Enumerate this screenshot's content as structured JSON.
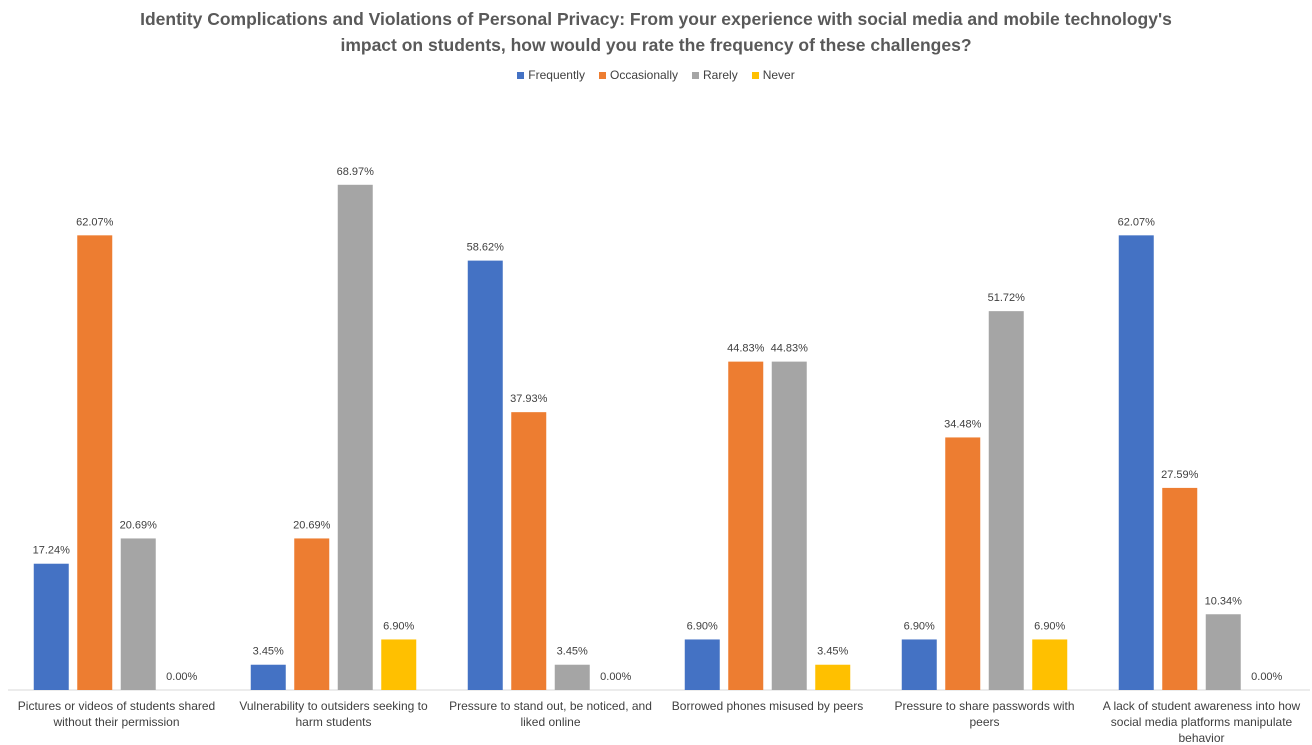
{
  "chart_data": {
    "type": "bar",
    "title": "Identity Complications and Violations of Personal Privacy: From your experience with social media and mobile technology's impact on students, how would you rate the frequency of these challenges?",
    "categories": [
      "Pictures or videos of students shared without their permission",
      "Vulnerability to outsiders seeking to harm students",
      "Pressure to stand out, be noticed, and liked online",
      "Borrowed phones misused by peers",
      "Pressure to share passwords with peers",
      "A lack of student awareness into how social media platforms manipulate behavior"
    ],
    "series": [
      {
        "name": "Frequently",
        "color": "#4472c4",
        "values": [
          17.24,
          3.45,
          58.62,
          6.9,
          6.9,
          62.07
        ],
        "value_labels": [
          "17.24%",
          "3.45%",
          "58.62%",
          "6.90%",
          "6.90%",
          "62.07%"
        ]
      },
      {
        "name": "Occasionally",
        "color": "#ed7d31",
        "values": [
          62.07,
          20.69,
          37.93,
          44.83,
          34.48,
          27.59
        ],
        "value_labels": [
          "62.07%",
          "20.69%",
          "37.93%",
          "44.83%",
          "34.48%",
          "27.59%"
        ]
      },
      {
        "name": "Rarely",
        "color": "#a5a5a5",
        "values": [
          20.69,
          68.97,
          3.45,
          44.83,
          51.72,
          10.34
        ],
        "value_labels": [
          "20.69%",
          "68.97%",
          "3.45%",
          "44.83%",
          "51.72%",
          "10.34%"
        ]
      },
      {
        "name": "Never",
        "color": "#ffc000",
        "values": [
          0,
          6.9,
          0,
          3.45,
          6.9,
          0
        ],
        "value_labels": [
          "0.00%",
          "6.90%",
          "0.00%",
          "3.45%",
          "6.90%",
          "0.00%"
        ]
      }
    ],
    "ylim": [
      0,
      80
    ],
    "legend": "top"
  }
}
